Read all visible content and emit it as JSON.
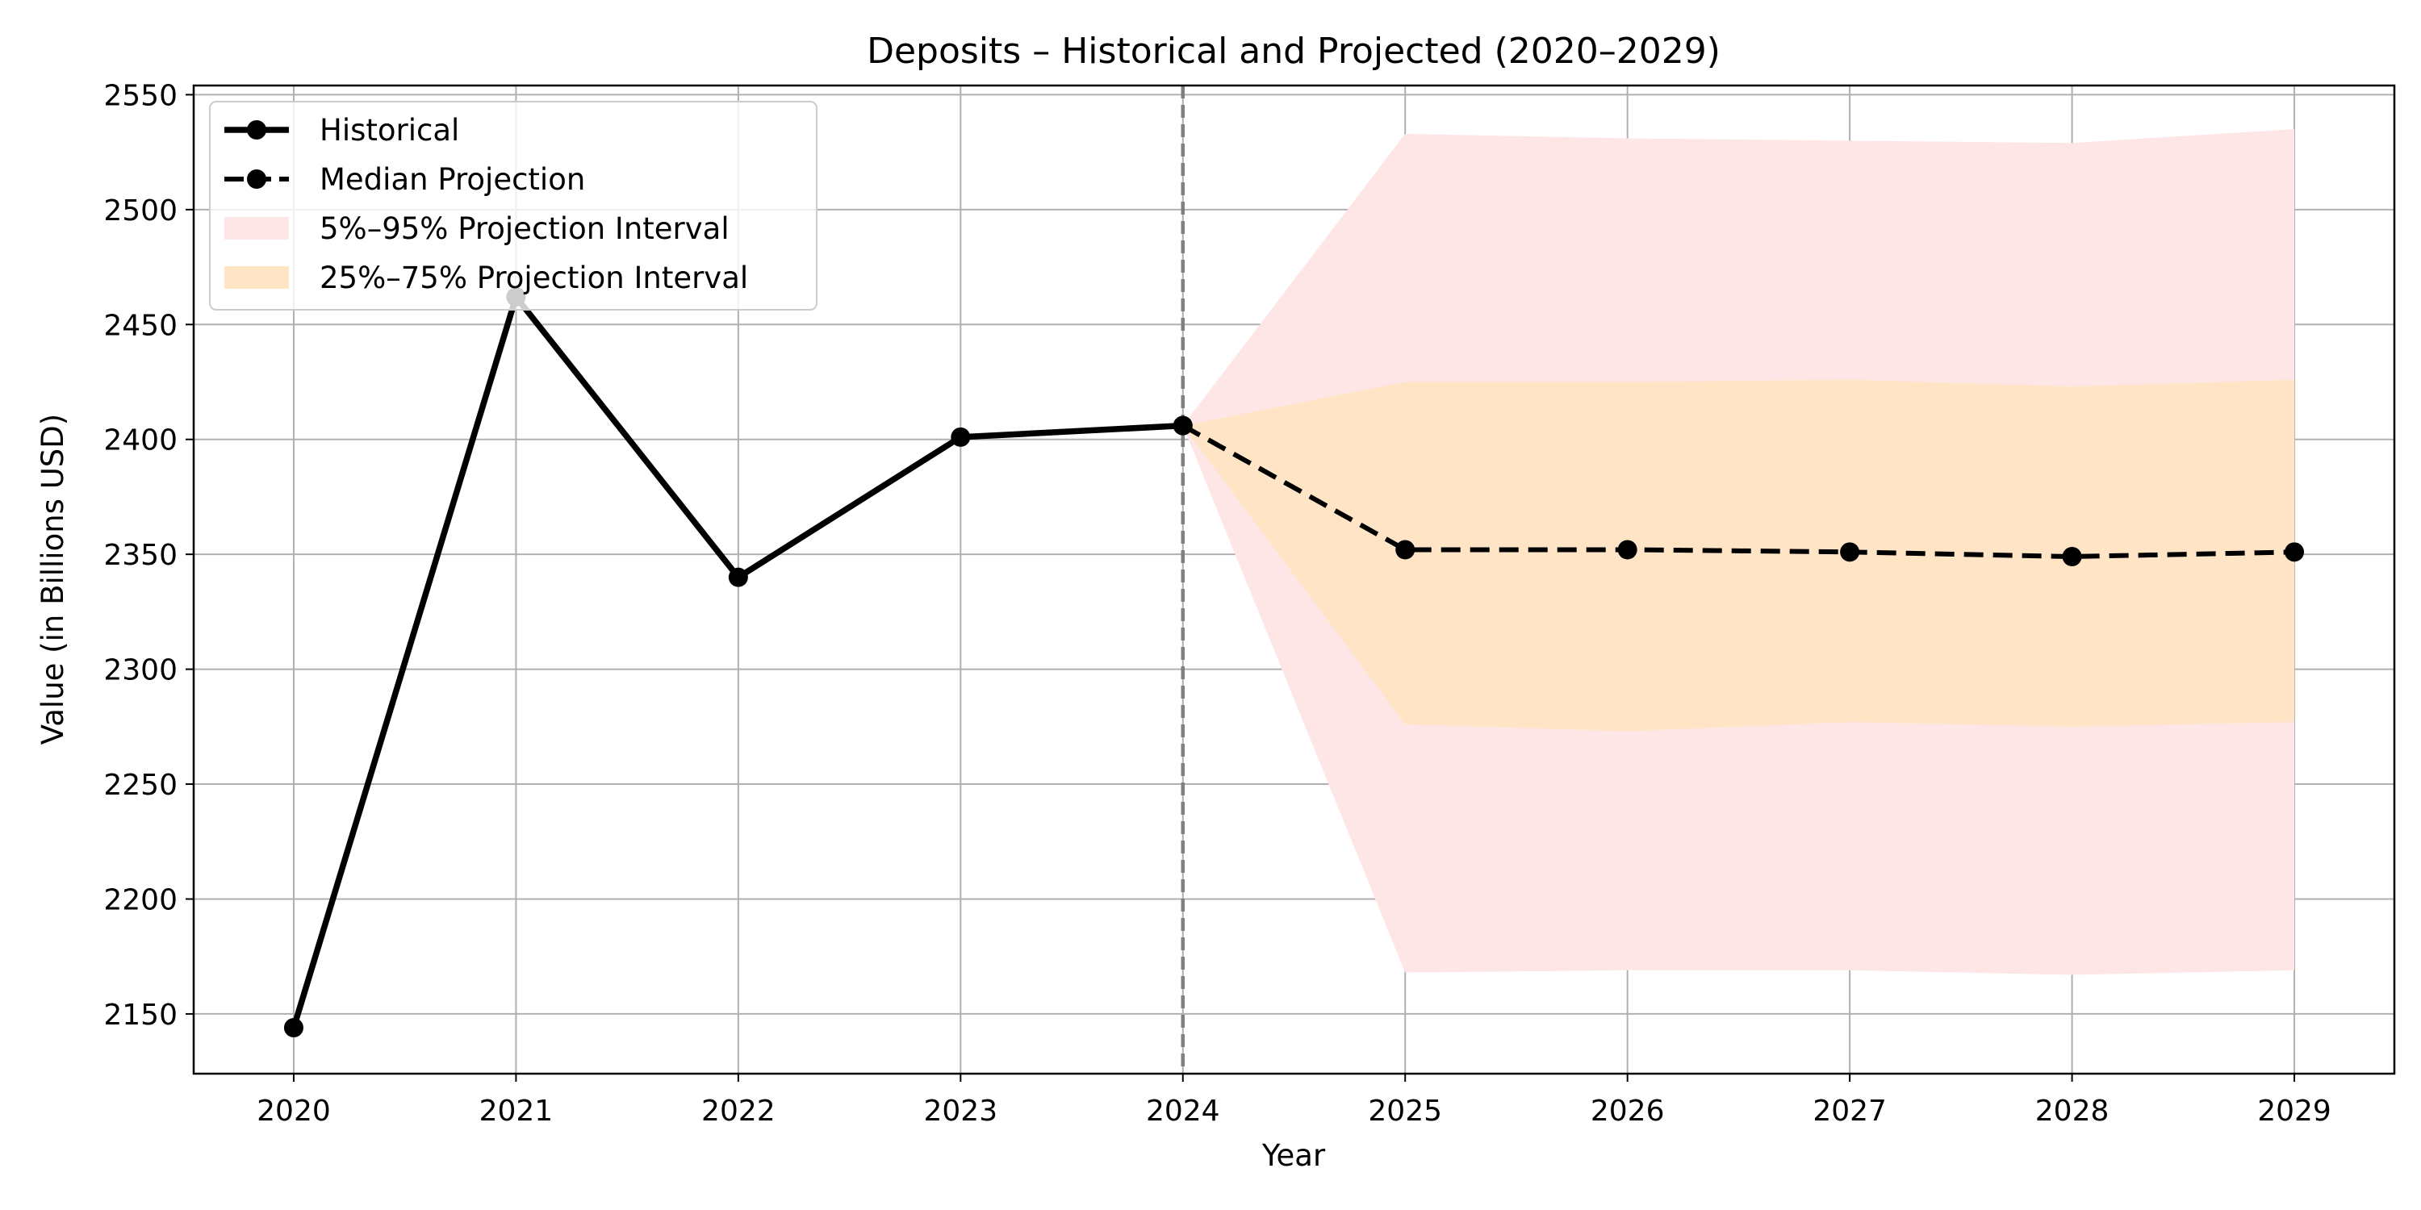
{
  "chart_data": {
    "type": "line",
    "title": "Deposits – Historical and Projected (2020–2029)",
    "xlabel": "Year",
    "ylabel": "Value (in Billions USD)",
    "x_ticks": [
      "2020",
      "2021",
      "2022",
      "2023",
      "2024",
      "2025",
      "2026",
      "2027",
      "2028",
      "2029"
    ],
    "y_ticks": [
      "2150",
      "2200",
      "2250",
      "2300",
      "2350",
      "2400",
      "2450",
      "2500",
      "2550"
    ],
    "xlim": [
      2019.55,
      2029.45
    ],
    "ylim": [
      2124,
      2554
    ],
    "grid": true,
    "legend_position": "top-left",
    "divider_x": 2024,
    "series": [
      {
        "name": "Historical",
        "style": "solid",
        "color": "#000000",
        "x": [
          2020,
          2021,
          2022,
          2023,
          2024
        ],
        "values": [
          2144,
          2462,
          2340,
          2401,
          2406
        ]
      },
      {
        "name": "Median Projection",
        "style": "dashed",
        "color": "#000000",
        "x": [
          2024,
          2025,
          2026,
          2027,
          2028,
          2029
        ],
        "values": [
          2406,
          2352,
          2352,
          2351,
          2349,
          2351
        ]
      }
    ],
    "intervals": [
      {
        "name": "5%–95% Projection Interval",
        "color": "#ffe6e6",
        "x": [
          2024,
          2025,
          2026,
          2027,
          2028,
          2029
        ],
        "lower": [
          2406,
          2168,
          2169,
          2169,
          2167,
          2169
        ],
        "upper": [
          2406,
          2533,
          2531,
          2530,
          2529,
          2535
        ]
      },
      {
        "name": "25%–75% Projection Interval",
        "color": "#ffe4c6",
        "x": [
          2024,
          2025,
          2026,
          2027,
          2028,
          2029
        ],
        "lower": [
          2406,
          2276,
          2273,
          2277,
          2275,
          2277
        ],
        "upper": [
          2406,
          2425,
          2425,
          2426,
          2423,
          2426
        ]
      }
    ]
  }
}
